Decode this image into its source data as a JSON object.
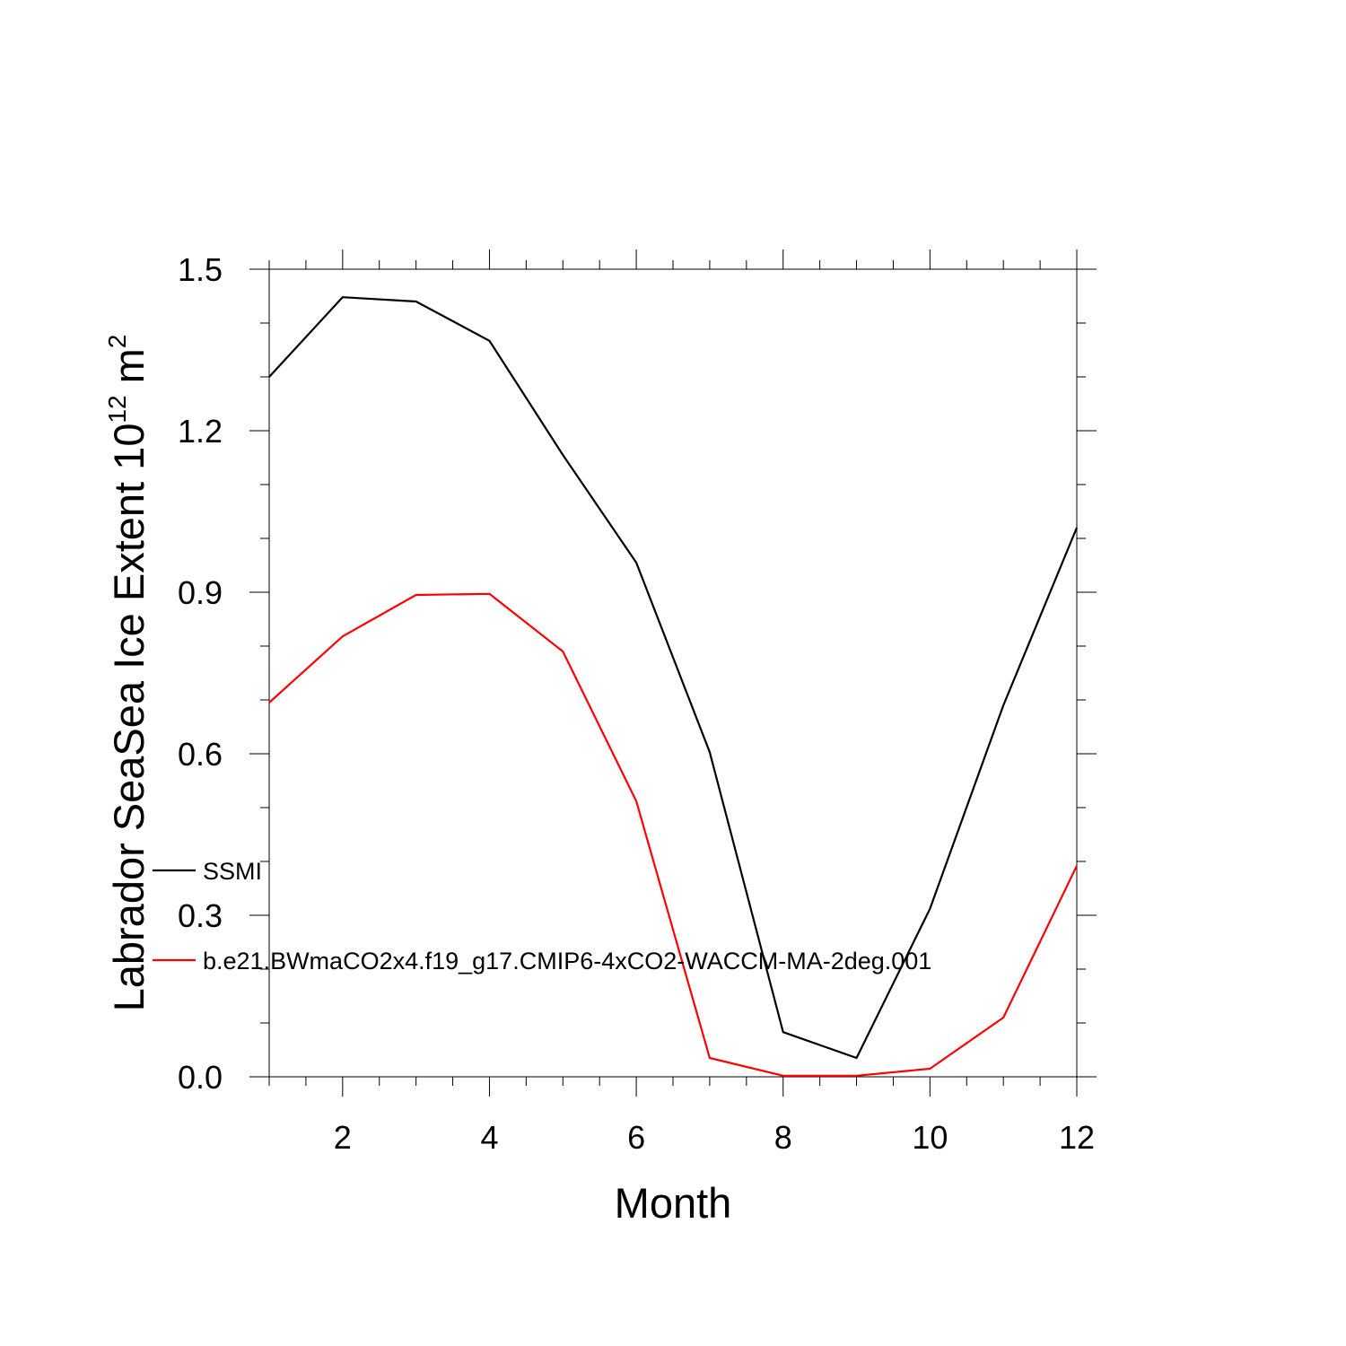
{
  "chart_data": {
    "type": "line",
    "title": "",
    "xlabel": "Month",
    "ylabel_prefix": "Labrador SeaSea Ice Extent 10",
    "ylabel_exponent": "12",
    "ylabel_unit": " m",
    "ylabel_unit_exponent": "2",
    "xlim": [
      1,
      12
    ],
    "ylim": [
      0,
      1.5
    ],
    "x": [
      1,
      2,
      3,
      4,
      5,
      6,
      7,
      8,
      9,
      10,
      11,
      12
    ],
    "x_ticks": [
      2,
      4,
      6,
      8,
      10,
      12
    ],
    "x_tick_labels": [
      "2",
      "4",
      "6",
      "8",
      "10",
      "12"
    ],
    "y_ticks": [
      0,
      0.3,
      0.6,
      0.9,
      1.2,
      1.5
    ],
    "y_tick_labels": [
      "0.0",
      "0.3",
      "0.6",
      "0.9",
      "1.2",
      "1.5"
    ],
    "series": [
      {
        "name": "SSMI",
        "color": "#000000",
        "values": [
          1.3,
          1.448,
          1.44,
          1.367,
          1.155,
          0.955,
          0.603,
          0.083,
          0.035,
          0.312,
          0.69,
          1.02
        ]
      },
      {
        "name": "b.e21.BWmaCO2x4.f19_g17.CMIP6-4xCO2-WACCM-MA-2deg.001",
        "color": "#ff0000",
        "values": [
          0.695,
          0.818,
          0.895,
          0.897,
          0.79,
          0.512,
          0.035,
          0.002,
          0.002,
          0.015,
          0.11,
          0.392
        ]
      }
    ],
    "legend_position": "lower-left"
  }
}
